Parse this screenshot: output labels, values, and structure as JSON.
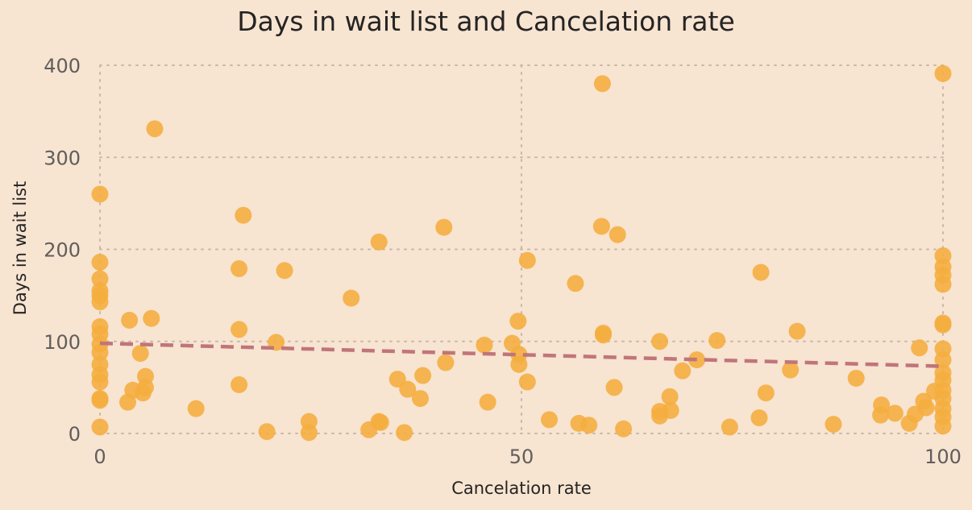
{
  "chart_data": {
    "type": "scatter",
    "title": "Days in wait list and Cancelation rate",
    "xlabel": "Cancelation rate",
    "ylabel": "Days in wait list",
    "xlim": [
      0,
      100
    ],
    "ylim": [
      0,
      400
    ],
    "xticks": [
      0,
      50,
      100
    ],
    "yticks": [
      0,
      100,
      200,
      300,
      400
    ],
    "grid": true,
    "legend": "none",
    "point_color": "#f5ad3d",
    "trend_color": "#c0757a",
    "trendline": {
      "x": [
        0,
        100
      ],
      "y": [
        98,
        73
      ]
    },
    "points": [
      {
        "x": 0,
        "y": 260
      },
      {
        "x": 0,
        "y": 186
      },
      {
        "x": 0,
        "y": 168
      },
      {
        "x": 0,
        "y": 155
      },
      {
        "x": 0,
        "y": 150
      },
      {
        "x": 0,
        "y": 143
      },
      {
        "x": 0,
        "y": 116
      },
      {
        "x": 0,
        "y": 108
      },
      {
        "x": 0,
        "y": 97
      },
      {
        "x": 0,
        "y": 88
      },
      {
        "x": 0,
        "y": 75
      },
      {
        "x": 0,
        "y": 64
      },
      {
        "x": 0,
        "y": 56
      },
      {
        "x": 0,
        "y": 38
      },
      {
        "x": 0,
        "y": 36
      },
      {
        "x": 0,
        "y": 7
      },
      {
        "x": 3.3,
        "y": 34
      },
      {
        "x": 3.5,
        "y": 123
      },
      {
        "x": 3.9,
        "y": 47
      },
      {
        "x": 4.8,
        "y": 87
      },
      {
        "x": 5.1,
        "y": 44
      },
      {
        "x": 5.4,
        "y": 62
      },
      {
        "x": 5.4,
        "y": 50
      },
      {
        "x": 6.1,
        "y": 125
      },
      {
        "x": 6.5,
        "y": 331
      },
      {
        "x": 11.4,
        "y": 27
      },
      {
        "x": 16.5,
        "y": 179
      },
      {
        "x": 16.5,
        "y": 113
      },
      {
        "x": 16.5,
        "y": 53
      },
      {
        "x": 17.0,
        "y": 237
      },
      {
        "x": 19.8,
        "y": 2
      },
      {
        "x": 20.9,
        "y": 99
      },
      {
        "x": 21.9,
        "y": 177
      },
      {
        "x": 24.8,
        "y": 13
      },
      {
        "x": 24.8,
        "y": 1
      },
      {
        "x": 29.8,
        "y": 147
      },
      {
        "x": 31.9,
        "y": 4
      },
      {
        "x": 33.1,
        "y": 13
      },
      {
        "x": 33.1,
        "y": 208
      },
      {
        "x": 33.3,
        "y": 12
      },
      {
        "x": 35.3,
        "y": 59
      },
      {
        "x": 36.1,
        "y": 1
      },
      {
        "x": 36.5,
        "y": 48
      },
      {
        "x": 38.0,
        "y": 38
      },
      {
        "x": 38.3,
        "y": 63
      },
      {
        "x": 40.8,
        "y": 224
      },
      {
        "x": 41.0,
        "y": 77
      },
      {
        "x": 45.6,
        "y": 96
      },
      {
        "x": 46.0,
        "y": 34
      },
      {
        "x": 48.9,
        "y": 98
      },
      {
        "x": 49.6,
        "y": 122
      },
      {
        "x": 49.7,
        "y": 86
      },
      {
        "x": 49.7,
        "y": 75
      },
      {
        "x": 50.7,
        "y": 188
      },
      {
        "x": 50.7,
        "y": 56
      },
      {
        "x": 53.3,
        "y": 15
      },
      {
        "x": 56.4,
        "y": 163
      },
      {
        "x": 56.8,
        "y": 11
      },
      {
        "x": 58.0,
        "y": 9
      },
      {
        "x": 59.5,
        "y": 225
      },
      {
        "x": 59.6,
        "y": 380
      },
      {
        "x": 59.7,
        "y": 109
      },
      {
        "x": 59.7,
        "y": 107
      },
      {
        "x": 61.0,
        "y": 50
      },
      {
        "x": 61.4,
        "y": 216
      },
      {
        "x": 62.1,
        "y": 5
      },
      {
        "x": 66.4,
        "y": 100
      },
      {
        "x": 66.4,
        "y": 24
      },
      {
        "x": 66.4,
        "y": 19
      },
      {
        "x": 67.6,
        "y": 40
      },
      {
        "x": 67.7,
        "y": 25
      },
      {
        "x": 69.1,
        "y": 68
      },
      {
        "x": 70.8,
        "y": 80
      },
      {
        "x": 73.2,
        "y": 101
      },
      {
        "x": 74.7,
        "y": 7
      },
      {
        "x": 78.2,
        "y": 17
      },
      {
        "x": 78.4,
        "y": 175
      },
      {
        "x": 79.0,
        "y": 44
      },
      {
        "x": 81.9,
        "y": 69
      },
      {
        "x": 82.7,
        "y": 111
      },
      {
        "x": 87.0,
        "y": 10
      },
      {
        "x": 89.7,
        "y": 60
      },
      {
        "x": 92.6,
        "y": 20
      },
      {
        "x": 92.7,
        "y": 31
      },
      {
        "x": 94.3,
        "y": 22
      },
      {
        "x": 96.0,
        "y": 11
      },
      {
        "x": 96.7,
        "y": 21
      },
      {
        "x": 97.2,
        "y": 93
      },
      {
        "x": 97.7,
        "y": 35
      },
      {
        "x": 98.0,
        "y": 28
      },
      {
        "x": 99.0,
        "y": 46
      },
      {
        "x": 100,
        "y": 391
      },
      {
        "x": 100,
        "y": 193
      },
      {
        "x": 100,
        "y": 181
      },
      {
        "x": 100,
        "y": 172
      },
      {
        "x": 100,
        "y": 162
      },
      {
        "x": 100,
        "y": 120
      },
      {
        "x": 100,
        "y": 118
      },
      {
        "x": 100,
        "y": 92
      },
      {
        "x": 100,
        "y": 80
      },
      {
        "x": 100,
        "y": 66
      },
      {
        "x": 100,
        "y": 58
      },
      {
        "x": 100,
        "y": 47
      },
      {
        "x": 100,
        "y": 38
      },
      {
        "x": 100,
        "y": 27
      },
      {
        "x": 100,
        "y": 18
      },
      {
        "x": 100,
        "y": 8
      }
    ]
  }
}
